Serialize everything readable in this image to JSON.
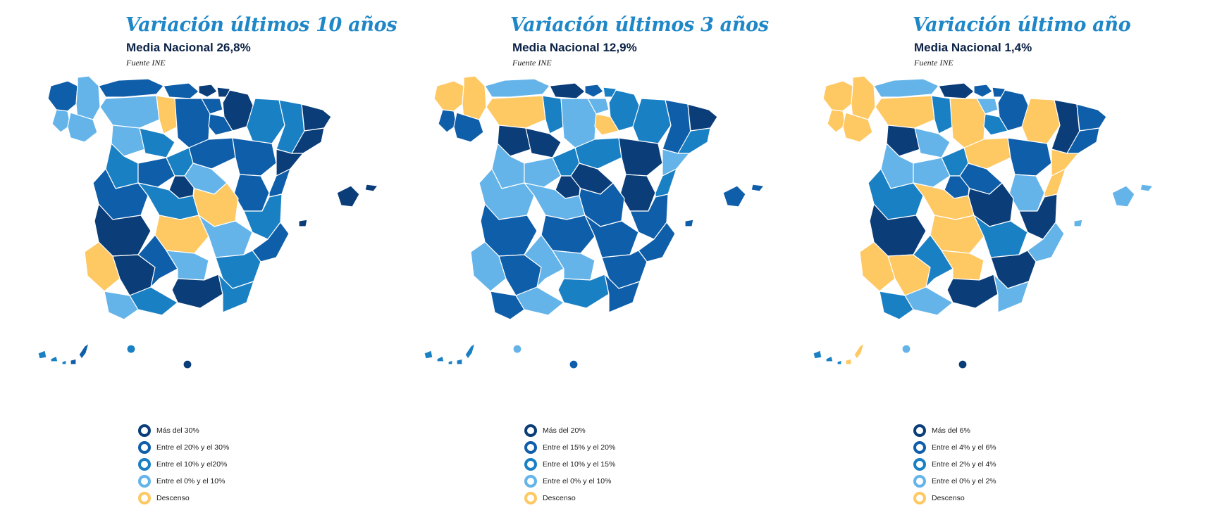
{
  "colors": {
    "c1": "#0b3d78",
    "c2": "#0f5ea9",
    "c3": "#1a80c4",
    "c4": "#64b4ea",
    "c5": "#fec863",
    "title": "#1f87c8",
    "subtitle": "#0b2246"
  },
  "maps": [
    {
      "title": "Variación últimos 10 años",
      "subtitle": "Media Nacional 26,8%",
      "source": "Fuente INE",
      "legend": [
        {
          "label": "Más del 30%",
          "color": "c1"
        },
        {
          "label": "Entre el 20% y el 30%",
          "color": "c2"
        },
        {
          "label": "Entre el 10% y el20%",
          "color": "c3"
        },
        {
          "label": "Entre el 0% y el 10%",
          "color": "c4"
        },
        {
          "label": "Descenso",
          "color": "c5"
        }
      ],
      "regions": {
        "lugo": "c4",
        "coruna": "c2",
        "pontevedra": "c4",
        "ourense": "c4",
        "asturias": "c2",
        "cantabria": "c2",
        "bizkaia": "c1",
        "gipuzkoa": "c1",
        "alava": "c2",
        "navarra": "c1",
        "leon": "c4",
        "palencia": "c5",
        "burgos": "c2",
        "larioja": "c2",
        "zamora": "c4",
        "valladolid": "c3",
        "soria": "c2",
        "huesca": "c3",
        "zaragoza": "c2",
        "teruel": "c2",
        "lleida": "c3",
        "girona": "c1",
        "barcelona": "c1",
        "tarragona": "c1",
        "salamanca": "c3",
        "avila": "c2",
        "segovia": "c3",
        "madrid": "c1",
        "guadalajara": "c4",
        "cuenca": "c5",
        "castellon": "c2",
        "valencia": "c3",
        "caceres": "c2",
        "badajoz": "c1",
        "toledo": "c3",
        "ciudadreal": "c5",
        "albacete": "c4",
        "alicante": "c2",
        "huelva": "c5",
        "sevilla": "c1",
        "cordoba": "c2",
        "jaen": "c4",
        "granada": "c1",
        "murcia": "c3",
        "almeria": "c3",
        "cadiz": "c4",
        "malaga": "c3",
        "baleares": "c1",
        "canarias_w": "c3",
        "canarias_e": "c2",
        "ceuta": "c3",
        "melilla": "c1"
      }
    },
    {
      "title": "Variación últimos 3 años",
      "subtitle": "Media Nacional 12,9%",
      "source": "Fuente INE",
      "legend": [
        {
          "label": "Más del 20%",
          "color": "c1"
        },
        {
          "label": "Entre el 15% y el 20%",
          "color": "c2"
        },
        {
          "label": "Entre el 10% y el 15%",
          "color": "c3"
        },
        {
          "label": "Entre el 0% y el 10%",
          "color": "c4"
        },
        {
          "label": "Descenso",
          "color": "c5"
        }
      ],
      "regions": {
        "lugo": "c5",
        "coruna": "c5",
        "pontevedra": "c2",
        "ourense": "c2",
        "asturias": "c4",
        "cantabria": "c1",
        "bizkaia": "c2",
        "gipuzkoa": "c3",
        "alava": "c4",
        "navarra": "c3",
        "leon": "c5",
        "palencia": "c3",
        "burgos": "c4",
        "larioja": "c5",
        "zamora": "c1",
        "valladolid": "c1",
        "soria": "c3",
        "huesca": "c3",
        "zaragoza": "c1",
        "teruel": "c1",
        "lleida": "c2",
        "girona": "c1",
        "barcelona": "c3",
        "tarragona": "c4",
        "salamanca": "c4",
        "avila": "c4",
        "segovia": "c3",
        "madrid": "c1",
        "guadalajara": "c1",
        "cuenca": "c2",
        "castellon": "c3",
        "valencia": "c2",
        "caceres": "c4",
        "badajoz": "c2",
        "toledo": "c4",
        "ciudadreal": "c2",
        "albacete": "c2",
        "alicante": "c2",
        "huelva": "c4",
        "sevilla": "c2",
        "cordoba": "c4",
        "jaen": "c4",
        "granada": "c3",
        "murcia": "c2",
        "almeria": "c2",
        "cadiz": "c2",
        "malaga": "c4",
        "baleares": "c2",
        "canarias_w": "c3",
        "canarias_e": "c3",
        "ceuta": "c4",
        "melilla": "c2"
      }
    },
    {
      "title": "Variación último año",
      "subtitle": "Media Nacional 1,4%",
      "source": "Fuente INE",
      "legend": [
        {
          "label": "Más del 6%",
          "color": "c1"
        },
        {
          "label": "Entre el 4% y el 6%",
          "color": "c2"
        },
        {
          "label": "Entre el 2% y el 4%",
          "color": "c3"
        },
        {
          "label": "Entre el 0% y el 2%",
          "color": "c4"
        },
        {
          "label": "Descenso",
          "color": "c5"
        }
      ],
      "regions": {
        "lugo": "c5",
        "coruna": "c5",
        "pontevedra": "c5",
        "ourense": "c5",
        "asturias": "c4",
        "cantabria": "c1",
        "bizkaia": "c2",
        "gipuzkoa": "c2",
        "alava": "c4",
        "navarra": "c2",
        "leon": "c5",
        "palencia": "c3",
        "burgos": "c5",
        "larioja": "c3",
        "zamora": "c1",
        "valladolid": "c4",
        "soria": "c5",
        "huesca": "c5",
        "zaragoza": "c2",
        "teruel": "c4",
        "lleida": "c1",
        "girona": "c2",
        "barcelona": "c2",
        "tarragona": "c5",
        "salamanca": "c4",
        "avila": "c4",
        "segovia": "c3",
        "madrid": "c2",
        "guadalajara": "c2",
        "cuenca": "c1",
        "castellon": "c5",
        "valencia": "c1",
        "caceres": "c3",
        "badajoz": "c1",
        "toledo": "c5",
        "ciudadreal": "c5",
        "albacete": "c3",
        "alicante": "c4",
        "huelva": "c5",
        "sevilla": "c5",
        "cordoba": "c3",
        "jaen": "c5",
        "granada": "c1",
        "murcia": "c1",
        "almeria": "c4",
        "cadiz": "c3",
        "malaga": "c4",
        "baleares": "c4",
        "canarias_w": "c3",
        "canarias_e": "c5",
        "ceuta": "c4",
        "melilla": "c1"
      }
    }
  ]
}
